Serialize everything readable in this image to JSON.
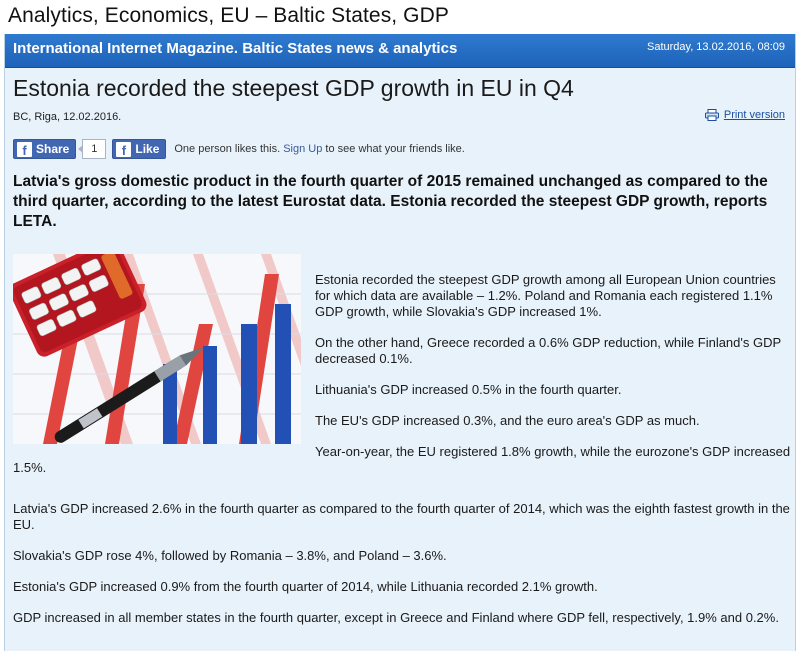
{
  "page_title": "Analytics, Economics, EU – Baltic States, GDP",
  "banner": {
    "title": "International Internet Magazine. Baltic States news & analytics",
    "date": "Saturday, 13.02.2016, 08:09"
  },
  "article": {
    "headline": "Estonia recorded the steepest GDP growth in EU in Q4",
    "byline": "BC, Riga, 12.02.2016.",
    "print_label": "Print version",
    "lead": "Latvia's gross domestic product in the fourth quarter of 2015 remained unchanged as compared to the third quarter, according to the latest Eurostat data. Estonia recorded the steepest GDP growth, reports LETA.",
    "paragraphs": [
      "Estonia recorded the steepest GDP growth among all European Union countries for which data are available – 1.2%. Poland and Romania each registered 1.1% GDP growth, while Slovakia's GDP increased 1%.",
      "On the other hand, Greece recorded a 0.6% GDP reduction, while Finland's GDP decreased 0.1%.",
      "Lithuania's GDP increased 0.5% in the fourth quarter.",
      "The EU's GDP increased 0.3%, and the euro area's GDP as much.",
      "Year-on-year, the EU registered 1.8% growth, while the eurozone's GDP increased 1.5%.",
      "Latvia's GDP increased 2.6% in the fourth quarter as compared to the fourth quarter of 2014, which was the eighth fastest growth in the EU.",
      "Slovakia's GDP rose 4%, followed by Romania – 3.8%, and Poland – 3.6%.",
      "Estonia's GDP increased 0.9% from the fourth quarter of 2014, while Lithuania recorded 2.1% growth.",
      "GDP increased in all member states in the fourth quarter, except in Greece and Finland where GDP fell, respectively, 1.9% and 0.2%."
    ]
  },
  "social": {
    "share_label": "Share",
    "share_count": "1",
    "like_label": "Like",
    "like_text_before": "One person likes this.",
    "signup_label": "Sign Up",
    "like_text_after": "to see what your friends like."
  },
  "colors": {
    "banner": "#1d63b9",
    "page_background": "#e8f2fb",
    "facebook": "#4267b2",
    "link": "#1a4fa0"
  }
}
